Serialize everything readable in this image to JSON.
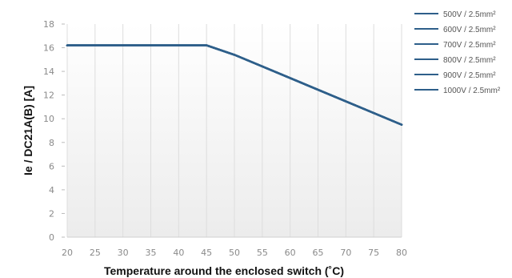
{
  "chart_data": {
    "type": "line",
    "xlabel": "Temperature around the enclosed switch (˚C)",
    "ylabel": "Ie / DC21A(B) [A]",
    "x_ticks": [
      20,
      25,
      30,
      35,
      40,
      45,
      50,
      55,
      60,
      65,
      70,
      75,
      80
    ],
    "y_ticks": [
      0,
      2,
      4,
      6,
      8,
      10,
      12,
      14,
      16,
      18
    ],
    "xlim": [
      20,
      80
    ],
    "ylim": [
      0,
      18
    ],
    "grid": "vertical",
    "legend_position": "top-right",
    "series": [
      {
        "name": "500V / 2.5mm²",
        "x": [
          20,
          45,
          50,
          80
        ],
        "y": [
          16.2,
          16.2,
          15.4,
          9.5
        ]
      },
      {
        "name": "600V / 2.5mm²",
        "x": [
          20,
          45,
          50,
          80
        ],
        "y": [
          16.2,
          16.2,
          15.4,
          9.5
        ]
      },
      {
        "name": "700V / 2.5mm²",
        "x": [
          20,
          45,
          50,
          80
        ],
        "y": [
          16.2,
          16.2,
          15.4,
          9.5
        ]
      },
      {
        "name": "800V / 2.5mm²",
        "x": [
          20,
          45,
          50,
          80
        ],
        "y": [
          16.2,
          16.2,
          15.4,
          9.5
        ]
      },
      {
        "name": "900V / 2.5mm²",
        "x": [
          20,
          45,
          50,
          80
        ],
        "y": [
          16.2,
          16.2,
          15.4,
          9.5
        ]
      },
      {
        "name": "1000V / 2.5mm²",
        "x": [
          20,
          45,
          50,
          80
        ],
        "y": [
          16.2,
          16.2,
          15.4,
          9.5
        ]
      }
    ],
    "colors": {
      "line": "#2e5f8a",
      "grid": "#dddddd",
      "tick": "#8a8a8a",
      "axis_label": "#111111"
    }
  }
}
